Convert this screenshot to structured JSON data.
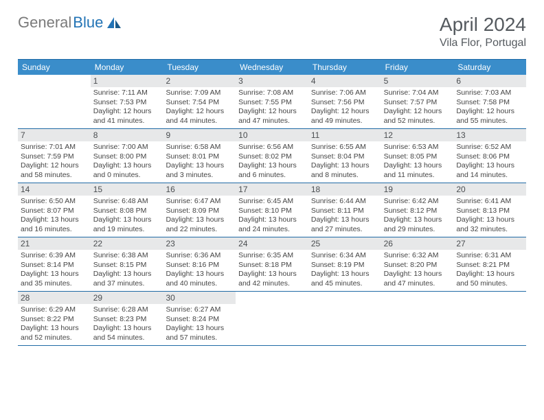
{
  "brand": {
    "part1": "General",
    "part2": "Blue"
  },
  "title": "April 2024",
  "location": "Vila Flor, Portugal",
  "colors": {
    "header_bg": "#3a8dca",
    "border": "#1f6aa5",
    "daynum_bg": "#e7e8e9",
    "text": "#444444",
    "title_text": "#555a5f"
  },
  "day_headers": [
    "Sunday",
    "Monday",
    "Tuesday",
    "Wednesday",
    "Thursday",
    "Friday",
    "Saturday"
  ],
  "weeks": [
    [
      {
        "n": "",
        "sr": "",
        "ss": "",
        "dl": ""
      },
      {
        "n": "1",
        "sr": "Sunrise: 7:11 AM",
        "ss": "Sunset: 7:53 PM",
        "dl": "Daylight: 12 hours and 41 minutes."
      },
      {
        "n": "2",
        "sr": "Sunrise: 7:09 AM",
        "ss": "Sunset: 7:54 PM",
        "dl": "Daylight: 12 hours and 44 minutes."
      },
      {
        "n": "3",
        "sr": "Sunrise: 7:08 AM",
        "ss": "Sunset: 7:55 PM",
        "dl": "Daylight: 12 hours and 47 minutes."
      },
      {
        "n": "4",
        "sr": "Sunrise: 7:06 AM",
        "ss": "Sunset: 7:56 PM",
        "dl": "Daylight: 12 hours and 49 minutes."
      },
      {
        "n": "5",
        "sr": "Sunrise: 7:04 AM",
        "ss": "Sunset: 7:57 PM",
        "dl": "Daylight: 12 hours and 52 minutes."
      },
      {
        "n": "6",
        "sr": "Sunrise: 7:03 AM",
        "ss": "Sunset: 7:58 PM",
        "dl": "Daylight: 12 hours and 55 minutes."
      }
    ],
    [
      {
        "n": "7",
        "sr": "Sunrise: 7:01 AM",
        "ss": "Sunset: 7:59 PM",
        "dl": "Daylight: 12 hours and 58 minutes."
      },
      {
        "n": "8",
        "sr": "Sunrise: 7:00 AM",
        "ss": "Sunset: 8:00 PM",
        "dl": "Daylight: 13 hours and 0 minutes."
      },
      {
        "n": "9",
        "sr": "Sunrise: 6:58 AM",
        "ss": "Sunset: 8:01 PM",
        "dl": "Daylight: 13 hours and 3 minutes."
      },
      {
        "n": "10",
        "sr": "Sunrise: 6:56 AM",
        "ss": "Sunset: 8:02 PM",
        "dl": "Daylight: 13 hours and 6 minutes."
      },
      {
        "n": "11",
        "sr": "Sunrise: 6:55 AM",
        "ss": "Sunset: 8:04 PM",
        "dl": "Daylight: 13 hours and 8 minutes."
      },
      {
        "n": "12",
        "sr": "Sunrise: 6:53 AM",
        "ss": "Sunset: 8:05 PM",
        "dl": "Daylight: 13 hours and 11 minutes."
      },
      {
        "n": "13",
        "sr": "Sunrise: 6:52 AM",
        "ss": "Sunset: 8:06 PM",
        "dl": "Daylight: 13 hours and 14 minutes."
      }
    ],
    [
      {
        "n": "14",
        "sr": "Sunrise: 6:50 AM",
        "ss": "Sunset: 8:07 PM",
        "dl": "Daylight: 13 hours and 16 minutes."
      },
      {
        "n": "15",
        "sr": "Sunrise: 6:48 AM",
        "ss": "Sunset: 8:08 PM",
        "dl": "Daylight: 13 hours and 19 minutes."
      },
      {
        "n": "16",
        "sr": "Sunrise: 6:47 AM",
        "ss": "Sunset: 8:09 PM",
        "dl": "Daylight: 13 hours and 22 minutes."
      },
      {
        "n": "17",
        "sr": "Sunrise: 6:45 AM",
        "ss": "Sunset: 8:10 PM",
        "dl": "Daylight: 13 hours and 24 minutes."
      },
      {
        "n": "18",
        "sr": "Sunrise: 6:44 AM",
        "ss": "Sunset: 8:11 PM",
        "dl": "Daylight: 13 hours and 27 minutes."
      },
      {
        "n": "19",
        "sr": "Sunrise: 6:42 AM",
        "ss": "Sunset: 8:12 PM",
        "dl": "Daylight: 13 hours and 29 minutes."
      },
      {
        "n": "20",
        "sr": "Sunrise: 6:41 AM",
        "ss": "Sunset: 8:13 PM",
        "dl": "Daylight: 13 hours and 32 minutes."
      }
    ],
    [
      {
        "n": "21",
        "sr": "Sunrise: 6:39 AM",
        "ss": "Sunset: 8:14 PM",
        "dl": "Daylight: 13 hours and 35 minutes."
      },
      {
        "n": "22",
        "sr": "Sunrise: 6:38 AM",
        "ss": "Sunset: 8:15 PM",
        "dl": "Daylight: 13 hours and 37 minutes."
      },
      {
        "n": "23",
        "sr": "Sunrise: 6:36 AM",
        "ss": "Sunset: 8:16 PM",
        "dl": "Daylight: 13 hours and 40 minutes."
      },
      {
        "n": "24",
        "sr": "Sunrise: 6:35 AM",
        "ss": "Sunset: 8:18 PM",
        "dl": "Daylight: 13 hours and 42 minutes."
      },
      {
        "n": "25",
        "sr": "Sunrise: 6:34 AM",
        "ss": "Sunset: 8:19 PM",
        "dl": "Daylight: 13 hours and 45 minutes."
      },
      {
        "n": "26",
        "sr": "Sunrise: 6:32 AM",
        "ss": "Sunset: 8:20 PM",
        "dl": "Daylight: 13 hours and 47 minutes."
      },
      {
        "n": "27",
        "sr": "Sunrise: 6:31 AM",
        "ss": "Sunset: 8:21 PM",
        "dl": "Daylight: 13 hours and 50 minutes."
      }
    ],
    [
      {
        "n": "28",
        "sr": "Sunrise: 6:29 AM",
        "ss": "Sunset: 8:22 PM",
        "dl": "Daylight: 13 hours and 52 minutes."
      },
      {
        "n": "29",
        "sr": "Sunrise: 6:28 AM",
        "ss": "Sunset: 8:23 PM",
        "dl": "Daylight: 13 hours and 54 minutes."
      },
      {
        "n": "30",
        "sr": "Sunrise: 6:27 AM",
        "ss": "Sunset: 8:24 PM",
        "dl": "Daylight: 13 hours and 57 minutes."
      },
      {
        "n": "",
        "sr": "",
        "ss": "",
        "dl": ""
      },
      {
        "n": "",
        "sr": "",
        "ss": "",
        "dl": ""
      },
      {
        "n": "",
        "sr": "",
        "ss": "",
        "dl": ""
      },
      {
        "n": "",
        "sr": "",
        "ss": "",
        "dl": ""
      }
    ]
  ]
}
